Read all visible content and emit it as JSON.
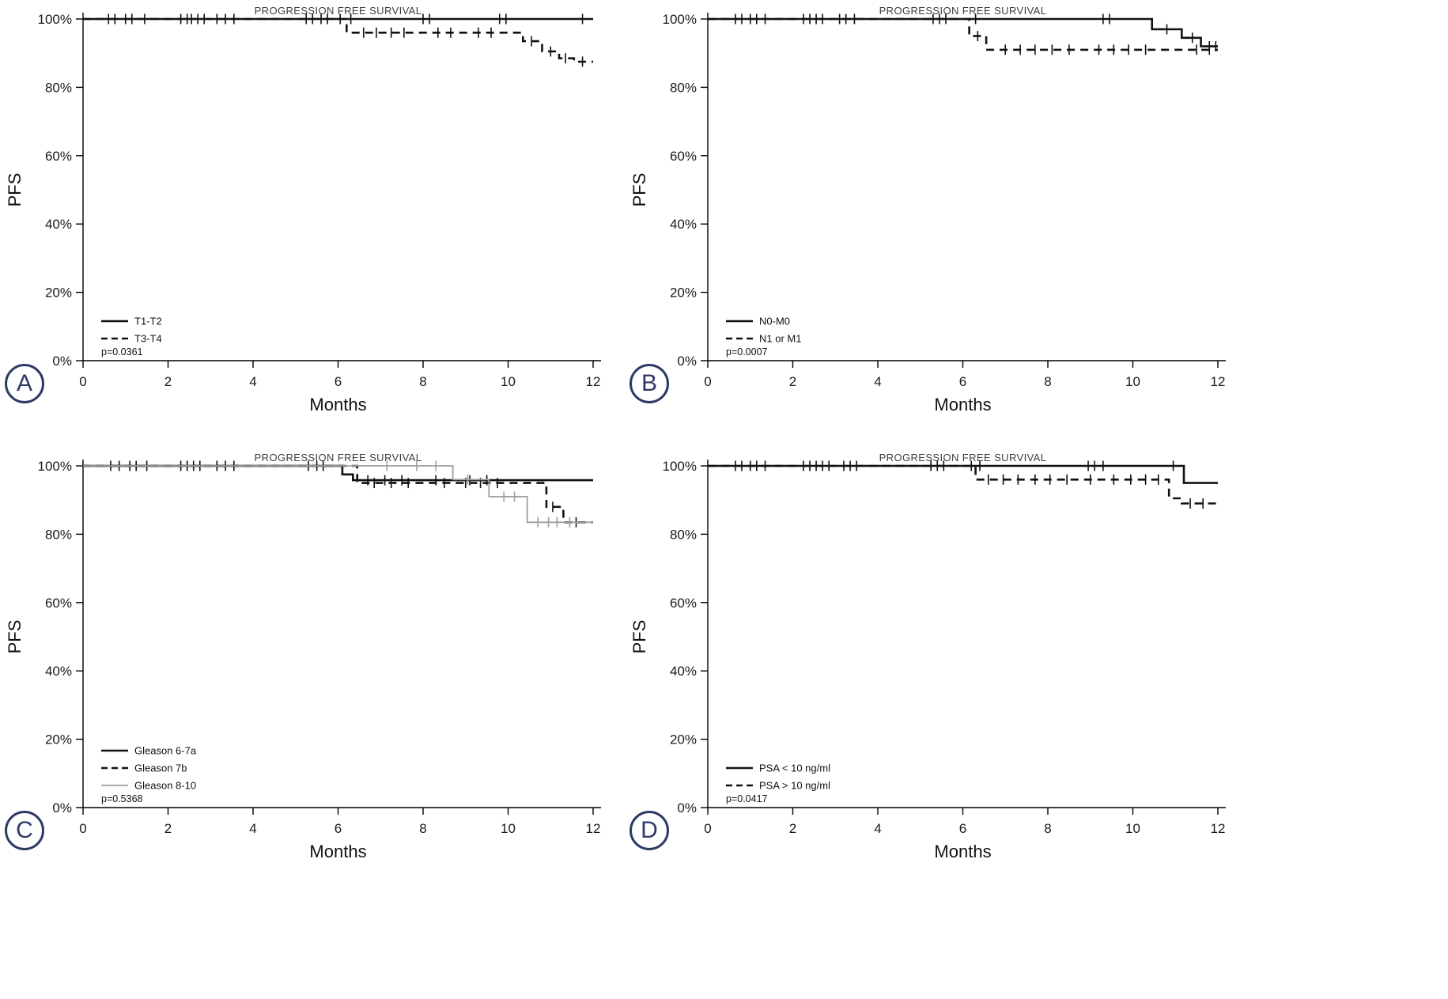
{
  "figure": {
    "badge_color": "#2e3a66",
    "shared_title": "PROGRESSION FREE SURVIVAL",
    "shared_xlabel": "Months",
    "shared_ylabel": "PFS"
  },
  "chart_data": [
    {
      "panel": "A",
      "type": "line",
      "title": "PROGRESSION FREE SURVIVAL",
      "xlabel": "Months",
      "ylabel": "PFS",
      "xlim": [
        0,
        12
      ],
      "ylim": [
        0,
        100
      ],
      "xticks": [
        0,
        2,
        4,
        6,
        8,
        10,
        12
      ],
      "ytick_values": [
        0,
        20,
        40,
        60,
        80,
        100
      ],
      "ytick_labels": [
        "0%",
        "20%",
        "40%",
        "60%",
        "80%",
        "100%"
      ],
      "legend_position": "lower-left",
      "grid": false,
      "p_value": "p=0.0361",
      "series": [
        {
          "name": "T1-T2",
          "style": "solid",
          "color": "#111111",
          "steps": [
            [
              0,
              100
            ],
            [
              12,
              100
            ]
          ],
          "censors": [
            [
              0.6,
              100
            ],
            [
              0.75,
              100
            ],
            [
              1.0,
              100
            ],
            [
              1.15,
              100
            ],
            [
              1.45,
              100
            ],
            [
              2.3,
              100
            ],
            [
              2.45,
              100
            ],
            [
              2.55,
              100
            ],
            [
              2.7,
              100
            ],
            [
              2.85,
              100
            ],
            [
              3.15,
              100
            ],
            [
              3.35,
              100
            ],
            [
              3.55,
              100
            ],
            [
              5.25,
              100
            ],
            [
              5.4,
              100
            ],
            [
              5.6,
              100
            ],
            [
              5.75,
              100
            ],
            [
              6.05,
              100
            ],
            [
              6.3,
              100
            ],
            [
              8.0,
              100
            ],
            [
              8.15,
              100
            ],
            [
              9.8,
              100
            ],
            [
              9.95,
              100
            ],
            [
              11.75,
              100
            ]
          ]
        },
        {
          "name": "T3-T4",
          "style": "dashed",
          "color": "#111111",
          "steps": [
            [
              0,
              100
            ],
            [
              6.2,
              100
            ],
            [
              6.2,
              96
            ],
            [
              10.35,
              96
            ],
            [
              10.35,
              93.5
            ],
            [
              10.8,
              93.5
            ],
            [
              10.8,
              90.5
            ],
            [
              11.2,
              90.5
            ],
            [
              11.2,
              88.5
            ],
            [
              11.55,
              88.5
            ],
            [
              11.55,
              87.5
            ],
            [
              12,
              87.5
            ]
          ],
          "censors": [
            [
              6.6,
              96
            ],
            [
              6.9,
              96
            ],
            [
              7.25,
              96
            ],
            [
              7.55,
              96
            ],
            [
              8.35,
              96
            ],
            [
              8.65,
              96
            ],
            [
              9.3,
              96
            ],
            [
              9.6,
              96
            ],
            [
              10.55,
              93.5
            ],
            [
              11.0,
              90.5
            ],
            [
              11.35,
              88.5
            ],
            [
              11.75,
              87.5
            ]
          ]
        }
      ]
    },
    {
      "panel": "B",
      "type": "line",
      "title": "PROGRESSION FREE SURVIVAL",
      "xlabel": "Months",
      "ylabel": "PFS",
      "xlim": [
        0,
        12
      ],
      "ylim": [
        0,
        100
      ],
      "xticks": [
        0,
        2,
        4,
        6,
        8,
        10,
        12
      ],
      "ytick_values": [
        0,
        20,
        40,
        60,
        80,
        100
      ],
      "ytick_labels": [
        "0%",
        "20%",
        "40%",
        "60%",
        "80%",
        "100%"
      ],
      "legend_position": "lower-left",
      "grid": false,
      "p_value": "p=0.0007",
      "series": [
        {
          "name": "N0-M0",
          "style": "solid",
          "color": "#111111",
          "steps": [
            [
              0,
              100
            ],
            [
              10.45,
              100
            ],
            [
              10.45,
              97
            ],
            [
              11.15,
              97
            ],
            [
              11.15,
              94.5
            ],
            [
              11.6,
              94.5
            ],
            [
              11.6,
              92
            ],
            [
              12,
              92
            ]
          ],
          "censors": [
            [
              0.65,
              100
            ],
            [
              0.8,
              100
            ],
            [
              1.0,
              100
            ],
            [
              1.15,
              100
            ],
            [
              1.35,
              100
            ],
            [
              2.25,
              100
            ],
            [
              2.4,
              100
            ],
            [
              2.55,
              100
            ],
            [
              2.7,
              100
            ],
            [
              3.1,
              100
            ],
            [
              3.25,
              100
            ],
            [
              3.45,
              100
            ],
            [
              5.3,
              100
            ],
            [
              5.45,
              100
            ],
            [
              5.6,
              100
            ],
            [
              6.3,
              100
            ],
            [
              9.3,
              100
            ],
            [
              9.45,
              100
            ],
            [
              10.8,
              97
            ],
            [
              11.4,
              94.5
            ],
            [
              11.8,
              92
            ],
            [
              11.95,
              92
            ]
          ]
        },
        {
          "name": "N1 or M1",
          "style": "dashed",
          "color": "#111111",
          "steps": [
            [
              0,
              100
            ],
            [
              6.15,
              100
            ],
            [
              6.15,
              95
            ],
            [
              6.55,
              95
            ],
            [
              6.55,
              91
            ],
            [
              12,
              91
            ]
          ],
          "censors": [
            [
              6.35,
              95
            ],
            [
              7.0,
              91
            ],
            [
              7.35,
              91
            ],
            [
              7.7,
              91
            ],
            [
              8.1,
              91
            ],
            [
              8.5,
              91
            ],
            [
              9.2,
              91
            ],
            [
              9.55,
              91
            ],
            [
              9.9,
              91
            ],
            [
              10.3,
              91
            ],
            [
              11.5,
              91
            ],
            [
              11.8,
              91
            ]
          ]
        }
      ]
    },
    {
      "panel": "C",
      "type": "line",
      "title": "PROGRESSION FREE SURVIVAL",
      "xlabel": "Months",
      "ylabel": "PFS",
      "xlim": [
        0,
        12
      ],
      "ylim": [
        0,
        100
      ],
      "xticks": [
        0,
        2,
        4,
        6,
        8,
        10,
        12
      ],
      "ytick_values": [
        0,
        20,
        40,
        60,
        80,
        100
      ],
      "ytick_labels": [
        "0%",
        "20%",
        "40%",
        "60%",
        "80%",
        "100%"
      ],
      "legend_position": "lower-left",
      "grid": false,
      "p_value": "p=0.5368",
      "series": [
        {
          "name": "Gleason 6-7a",
          "style": "solid",
          "color": "#111111",
          "steps": [
            [
              0,
              100
            ],
            [
              6.1,
              100
            ],
            [
              6.1,
              97.5
            ],
            [
              6.35,
              97.5
            ],
            [
              6.35,
              95.8
            ],
            [
              12,
              95.8
            ]
          ],
          "censors": [
            [
              0.65,
              100
            ],
            [
              0.85,
              100
            ],
            [
              1.1,
              100
            ],
            [
              1.25,
              100
            ],
            [
              1.5,
              100
            ],
            [
              2.3,
              100
            ],
            [
              2.45,
              100
            ],
            [
              2.6,
              100
            ],
            [
              2.75,
              100
            ],
            [
              3.15,
              100
            ],
            [
              3.35,
              100
            ],
            [
              3.55,
              100
            ],
            [
              5.3,
              100
            ],
            [
              5.5,
              100
            ],
            [
              5.65,
              100
            ],
            [
              6.7,
              95.8
            ],
            [
              7.1,
              95.8
            ],
            [
              7.5,
              95.8
            ],
            [
              8.3,
              95.8
            ],
            [
              9.1,
              95.8
            ],
            [
              9.5,
              95.8
            ]
          ]
        },
        {
          "name": "Gleason 7b",
          "style": "dashed",
          "color": "#111111",
          "steps": [
            [
              0,
              100
            ],
            [
              6.45,
              100
            ],
            [
              6.45,
              95
            ],
            [
              10.9,
              95
            ],
            [
              10.9,
              88
            ],
            [
              11.3,
              88
            ],
            [
              11.3,
              83.5
            ],
            [
              12,
              83.5
            ]
          ],
          "censors": [
            [
              6.85,
              95
            ],
            [
              7.25,
              95
            ],
            [
              7.65,
              95
            ],
            [
              8.5,
              95
            ],
            [
              9.0,
              95
            ],
            [
              9.35,
              95
            ],
            [
              9.75,
              95
            ],
            [
              11.05,
              88
            ],
            [
              11.6,
              83.5
            ]
          ]
        },
        {
          "name": "Gleason 8-10",
          "style": "solid",
          "color": "#9e9e9e",
          "width": 1.8,
          "steps": [
            [
              0,
              100
            ],
            [
              8.7,
              100
            ],
            [
              8.7,
              96
            ],
            [
              9.55,
              96
            ],
            [
              9.55,
              91
            ],
            [
              10.45,
              91
            ],
            [
              10.45,
              83.5
            ],
            [
              12,
              83.5
            ]
          ],
          "censors": [
            [
              7.15,
              100
            ],
            [
              7.85,
              100
            ],
            [
              8.3,
              100
            ],
            [
              9.05,
              96
            ],
            [
              9.9,
              91
            ],
            [
              10.15,
              91
            ],
            [
              10.7,
              83.5
            ],
            [
              10.95,
              83.5
            ],
            [
              11.15,
              83.5
            ],
            [
              11.45,
              83.5
            ]
          ]
        }
      ]
    },
    {
      "panel": "D",
      "type": "line",
      "title": "PROGRESSION FREE SURVIVAL",
      "xlabel": "Months",
      "ylabel": "PFS",
      "xlim": [
        0,
        12
      ],
      "ylim": [
        0,
        100
      ],
      "xticks": [
        0,
        2,
        4,
        6,
        8,
        10,
        12
      ],
      "ytick_values": [
        0,
        20,
        40,
        60,
        80,
        100
      ],
      "ytick_labels": [
        "0%",
        "20%",
        "40%",
        "60%",
        "80%",
        "100%"
      ],
      "legend_position": "lower-left",
      "grid": false,
      "p_value": "p=0.0417",
      "series": [
        {
          "name": "PSA < 10 ng/ml",
          "style": "solid",
          "color": "#111111",
          "steps": [
            [
              0,
              100
            ],
            [
              11.2,
              100
            ],
            [
              11.2,
              95
            ],
            [
              12,
              95
            ]
          ],
          "censors": [
            [
              0.65,
              100
            ],
            [
              0.8,
              100
            ],
            [
              1.0,
              100
            ],
            [
              1.15,
              100
            ],
            [
              1.35,
              100
            ],
            [
              2.25,
              100
            ],
            [
              2.4,
              100
            ],
            [
              2.55,
              100
            ],
            [
              2.7,
              100
            ],
            [
              2.85,
              100
            ],
            [
              3.2,
              100
            ],
            [
              3.35,
              100
            ],
            [
              3.5,
              100
            ],
            [
              5.25,
              100
            ],
            [
              5.4,
              100
            ],
            [
              5.55,
              100
            ],
            [
              6.2,
              100
            ],
            [
              6.4,
              100
            ],
            [
              8.95,
              100
            ],
            [
              9.1,
              100
            ],
            [
              9.3,
              100
            ],
            [
              10.95,
              100
            ]
          ]
        },
        {
          "name": "PSA > 10 ng/ml",
          "style": "dashed",
          "color": "#111111",
          "steps": [
            [
              0,
              100
            ],
            [
              6.3,
              100
            ],
            [
              6.3,
              96
            ],
            [
              10.85,
              96
            ],
            [
              10.85,
              90.5
            ],
            [
              11.15,
              90.5
            ],
            [
              11.15,
              89
            ],
            [
              12,
              89
            ]
          ],
          "censors": [
            [
              6.6,
              96
            ],
            [
              6.95,
              96
            ],
            [
              7.3,
              96
            ],
            [
              7.7,
              96
            ],
            [
              8.05,
              96
            ],
            [
              8.45,
              96
            ],
            [
              9.0,
              96
            ],
            [
              9.55,
              96
            ],
            [
              9.95,
              96
            ],
            [
              10.3,
              96
            ],
            [
              10.6,
              96
            ],
            [
              11.35,
              89
            ],
            [
              11.65,
              89
            ]
          ]
        }
      ]
    }
  ]
}
